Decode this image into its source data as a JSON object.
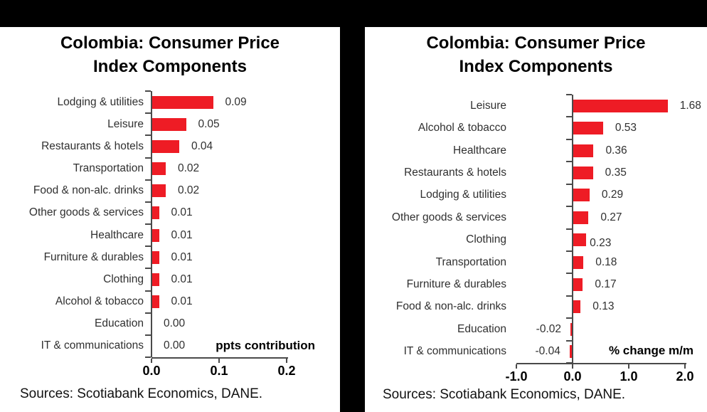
{
  "background_color": "#000000",
  "panel_color": "#ffffff",
  "accent_red": "#EE1C25",
  "chart_data": [
    {
      "type": "bar",
      "orientation": "horizontal",
      "title": "Colombia: Consumer Price Index Components",
      "title_lines": [
        "Colombia: Consumer Price",
        "Index Components"
      ],
      "xlabel": "ppts contribution",
      "source": "Sources: Scotiabank Economics, DANE.",
      "bar_color": "#EE1C25",
      "grid": false,
      "legend": false,
      "xlim": [
        0,
        0.2
      ],
      "x_ticks": [
        {
          "value": 0.0,
          "label": "0.0"
        },
        {
          "value": 0.1,
          "label": "0.1"
        },
        {
          "value": 0.2,
          "label": "0.2"
        }
      ],
      "categories": [
        "Lodging & utilities",
        "Leisure",
        "Restaurants & hotels",
        "Transportation",
        "Food & non-alc. drinks",
        "Other goods & services",
        "Healthcare",
        "Furniture & durables",
        "Clothing",
        "Alcohol & tobacco",
        "Education",
        "IT & communications"
      ],
      "values": [
        0.09,
        0.05,
        0.04,
        0.02,
        0.02,
        0.01,
        0.01,
        0.01,
        0.01,
        0.01,
        0.0,
        0.0
      ],
      "value_labels": [
        "0.09",
        "0.05",
        "0.04",
        "0.02",
        "0.02",
        "0.01",
        "0.01",
        "0.01",
        "0.01",
        "0.01",
        "0.00",
        "0.00"
      ]
    },
    {
      "type": "bar",
      "orientation": "horizontal",
      "title": "Colombia: Consumer Price Index Components",
      "title_lines": [
        "Colombia: Consumer Price",
        "Index Components"
      ],
      "xlabel": "% change m/m",
      "source": "Sources: Scotiabank Economics, DANE.",
      "bar_color": "#EE1C25",
      "grid": false,
      "legend": false,
      "xlim": [
        -1,
        2
      ],
      "x_ticks": [
        {
          "value": -1.0,
          "label": "-1.0"
        },
        {
          "value": 0.0,
          "label": "0.0"
        },
        {
          "value": 1.0,
          "label": "1.0"
        },
        {
          "value": 2.0,
          "label": "2.0"
        }
      ],
      "categories": [
        "Leisure",
        "Alcohol & tobacco",
        "Healthcare",
        "Restaurants & hotels",
        "Lodging & utilities",
        "Other goods & services",
        "Clothing",
        "Transportation",
        "Furniture & durables",
        "Food & non-alc. drinks",
        "Education",
        "IT & communications"
      ],
      "values": [
        1.68,
        0.53,
        0.36,
        0.35,
        0.29,
        0.27,
        0.23,
        0.18,
        0.17,
        0.13,
        -0.02,
        -0.04
      ],
      "value_labels": [
        "1.68",
        "0.53",
        "0.36",
        "0.35",
        "0.29",
        "0.27",
        "0.23",
        "0.18",
        "0.17",
        "0.13",
        "-0.02",
        "-0.04"
      ]
    }
  ]
}
